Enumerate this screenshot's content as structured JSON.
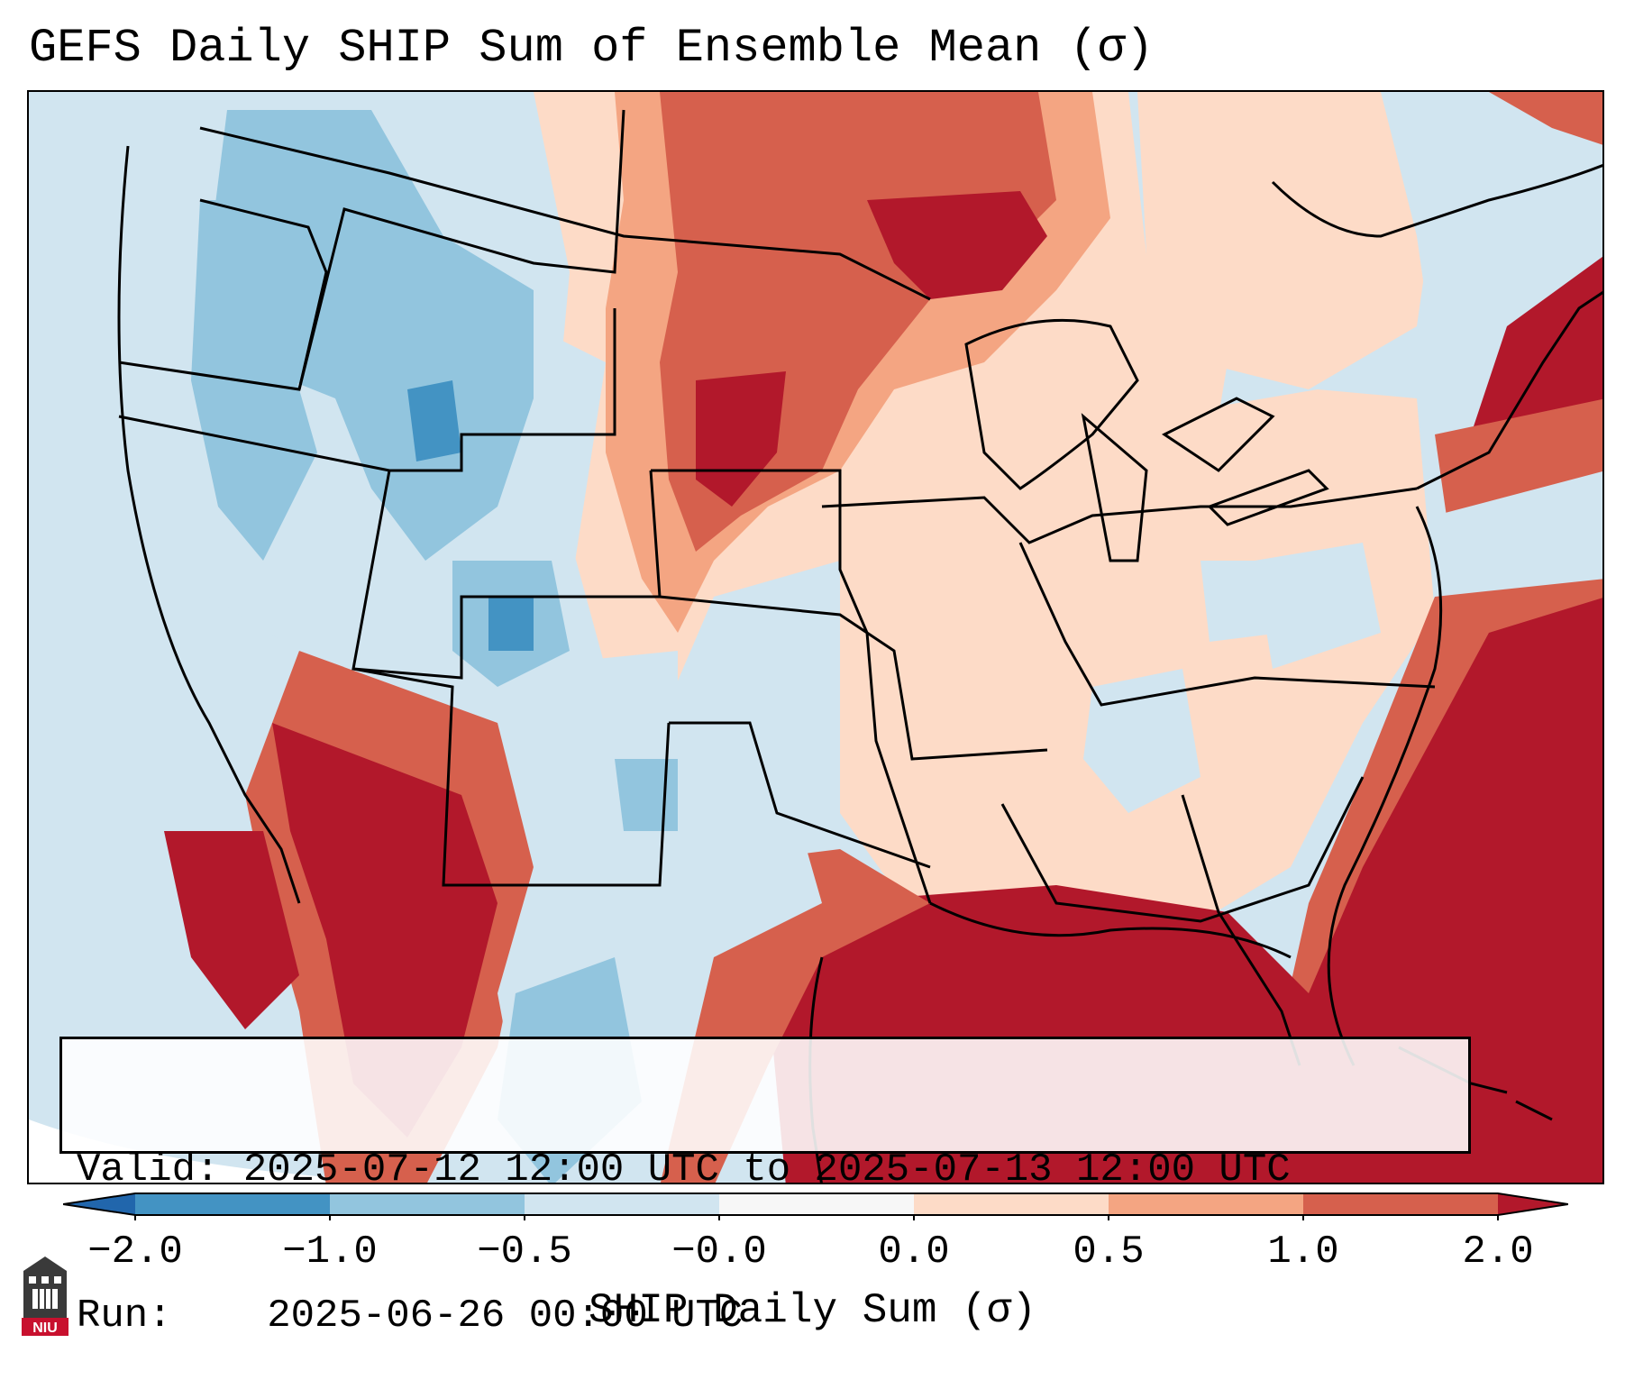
{
  "title": "GEFS Daily SHIP Sum of Ensemble Mean (σ)",
  "info": {
    "valid_label": "Valid:",
    "valid_value": "2025-07-12 12:00 UTC to 2025-07-13 12:00 UTC",
    "run_label": "Run:",
    "run_value": "2025-06-26 00:00 UTC"
  },
  "colorbar": {
    "label": "SHIP Daily Sum (σ)",
    "ticks": [
      "−2.0",
      "−1.0",
      "−0.5",
      "−0.0",
      "0.0",
      "0.5",
      "1.0",
      "2.0"
    ],
    "colors": [
      "#2166ac",
      "#4393c3",
      "#92c5de",
      "#d1e5f0",
      "#f7f7f7",
      "#fddbc7",
      "#f4a582",
      "#d6604d",
      "#b2182b"
    ]
  },
  "map": {
    "region": "CONUS",
    "features": [
      {
        "name": "pacific-northwest",
        "value": -0.5
      },
      {
        "name": "northern-rockies",
        "value": -1.0
      },
      {
        "name": "colorado",
        "value": -1.0
      },
      {
        "name": "southwest-border",
        "value": 2.0
      },
      {
        "name": "northern-plains",
        "value": 1.0
      },
      {
        "name": "upper-midwest",
        "value": 1.0
      },
      {
        "name": "southeast",
        "value": 0.5
      },
      {
        "name": "gulf-of-mexico",
        "value": 2.0
      },
      {
        "name": "western-atlantic",
        "value": 2.0
      },
      {
        "name": "new-england",
        "value": 2.0
      }
    ]
  },
  "logo": {
    "text": "NIU"
  }
}
